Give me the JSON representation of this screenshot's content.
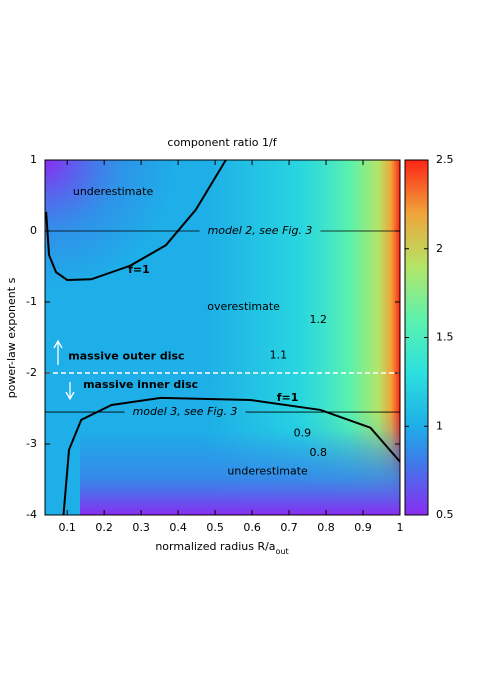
{
  "chart_data": {
    "type": "contour",
    "title": "component ratio 1/f",
    "ylabel": "power-law exponent s",
    "xlabel": {
      "text": "normalized radius R/a",
      "sub": "out"
    },
    "xlim": [
      0.04,
      1
    ],
    "ylim": [
      -4,
      1
    ],
    "xticks": [
      0.1,
      0.2,
      0.3,
      0.4,
      0.5,
      0.6,
      0.7,
      0.8,
      0.9,
      1
    ],
    "yticks": [
      1,
      0,
      -1,
      -2,
      -3,
      -4
    ],
    "colorbar": {
      "lim": [
        0.5,
        2.5
      ],
      "ticks": [
        0.5,
        1,
        1.5,
        2,
        2.5
      ],
      "colorscale": [
        {
          "value": 0.5,
          "color": "#8a2cf2"
        },
        {
          "value": 0.8,
          "color": "#3d7ce9"
        },
        {
          "value": 1,
          "color": "#1eaee8"
        },
        {
          "value": 1.3,
          "color": "#2be0de"
        },
        {
          "value": 1.6,
          "color": "#5cf2ae"
        },
        {
          "value": 1.9,
          "color": "#b4e566"
        },
        {
          "value": 2.2,
          "color": "#f0a43a"
        },
        {
          "value": 2.5,
          "color": "#ff2416"
        }
      ]
    },
    "series": [
      {
        "name": "f=1",
        "color": "#000000",
        "x": [
          0.043,
          0.051,
          0.07,
          0.1,
          0.165,
          0.27,
          0.367,
          0.448,
          0.529
        ],
        "values": [
          0.27,
          -0.34,
          -0.58,
          -0.69,
          -0.68,
          -0.49,
          -0.2,
          0.3,
          1
        ]
      },
      {
        "name": "f=1",
        "color": "#000000",
        "x": [
          0.09,
          0.105,
          0.138,
          0.22,
          0.353,
          0.596,
          0.785,
          0.92,
          1
        ],
        "values": [
          -4,
          -3.08,
          -2.66,
          -2.45,
          -2.35,
          -2.38,
          -2.52,
          -2.77,
          -3.25
        ]
      }
    ],
    "reference_lines": [
      {
        "label": "model 2, see Fig. 3",
        "value": 0
      },
      {
        "label": "model 3, see Fig. 3",
        "value": -2.55
      }
    ],
    "divider": -2,
    "annotations": [
      {
        "text": "underestimate",
        "x": 0.224,
        "y": 0.55
      },
      {
        "text": "f=1",
        "x": 0.294,
        "y": -0.55
      },
      {
        "text": "overestimate",
        "x": 0.577,
        "y": -1.07
      },
      {
        "text": "1.2",
        "x": 0.779,
        "y": -1.25
      },
      {
        "text": "1.1",
        "x": 0.671,
        "y": -1.75
      },
      {
        "text": "massive outer disc",
        "x": 0.103,
        "y": -1.77
      },
      {
        "text": "massive inner disc",
        "x": 0.143,
        "y": -2.17
      },
      {
        "text": "f=1",
        "x": 0.696,
        "y": -2.35
      },
      {
        "text": "0.9",
        "x": 0.736,
        "y": -2.85
      },
      {
        "text": "0.8",
        "x": 0.779,
        "y": -3.13
      },
      {
        "text": "underestimate",
        "x": 0.642,
        "y": -3.39
      }
    ]
  }
}
